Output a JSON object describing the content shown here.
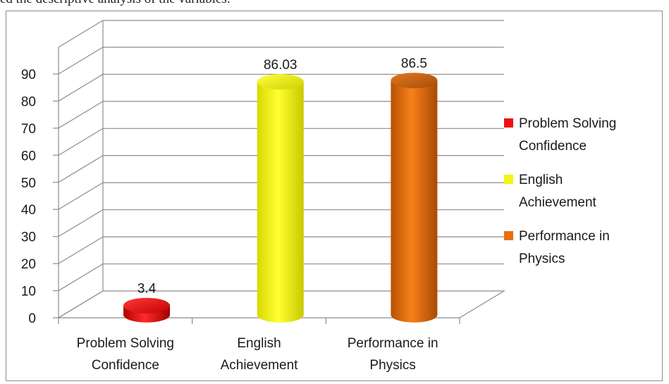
{
  "caption": "ed the descriptive analysis of the variables.",
  "chart_data": {
    "type": "bar",
    "style": "3d-cylinder",
    "categories": [
      "Problem Solving Confidence",
      "English Achievement",
      "Performance in Physics"
    ],
    "series": [
      {
        "name": "Problem Solving Confidence",
        "values": [
          3.4,
          null,
          null
        ],
        "color": "#ee1111"
      },
      {
        "name": "English Achievement",
        "values": [
          null,
          86.03,
          null
        ],
        "color": "#f4f410"
      },
      {
        "name": "Performance in Physics",
        "values": [
          null,
          null,
          86.5
        ],
        "color": "#e8700e"
      }
    ],
    "data_labels": [
      "3.4",
      "86.03",
      "86.5"
    ],
    "category_labels": [
      [
        "Problem Solving",
        "Confidence"
      ],
      [
        "English",
        "Achievement"
      ],
      [
        "Performance in",
        "Physics"
      ]
    ],
    "legend_labels": [
      [
        "Problem Solving",
        "Confidence"
      ],
      [
        "English",
        "Achievement"
      ],
      [
        "Performance in",
        "Physics"
      ]
    ],
    "ylim": [
      0,
      90
    ],
    "y_ticks": [
      "0",
      "10",
      "20",
      "30",
      "40",
      "50",
      "60",
      "70",
      "80",
      "90"
    ],
    "grid": true,
    "legend_position": "right",
    "title": "",
    "xlabel": "",
    "ylabel": ""
  }
}
